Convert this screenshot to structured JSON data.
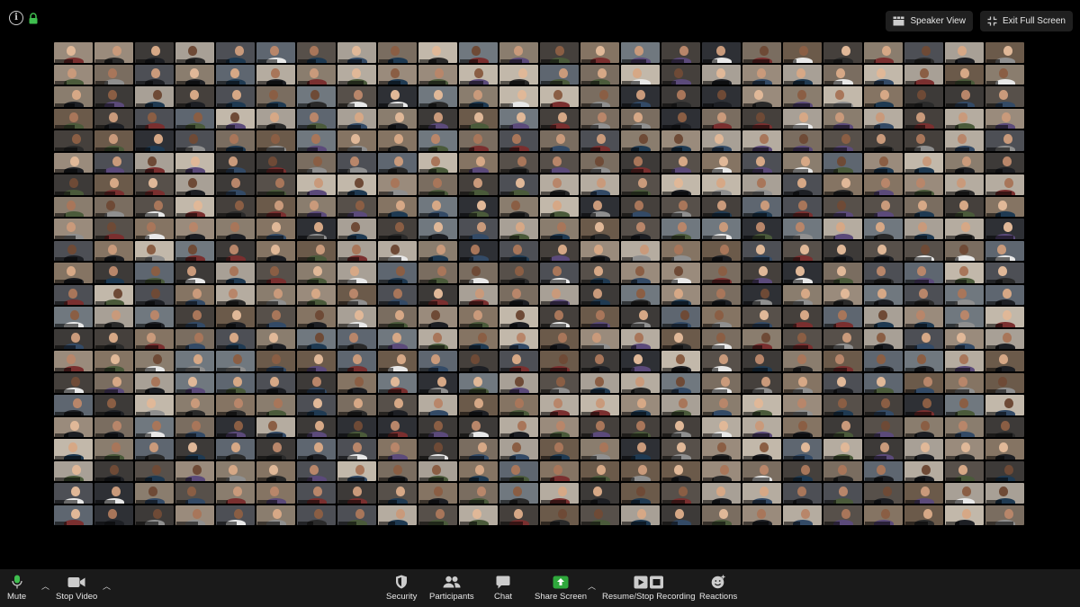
{
  "top_bar": {
    "speaker_view_label": "Speaker View",
    "exit_full_screen_label": "Exit Full Screen"
  },
  "gallery": {
    "columns": 24,
    "rows": 22
  },
  "toolbar": {
    "mute_label": "Mute",
    "stop_video_label": "Stop Video",
    "security_label": "Security",
    "participants_label": "Participants",
    "chat_label": "Chat",
    "share_screen_label": "Share Screen",
    "recording_label": "Resume/Stop Recording",
    "reactions_label": "Reactions"
  },
  "colors": {
    "background": "#000000",
    "toolbar_bg": "#1a1a1a",
    "mic_green": "#3fbf4f",
    "share_green": "#2fa83c",
    "lock_green": "#3fbf4f"
  },
  "icons": {
    "info": "info-icon",
    "encryption": "lock-icon",
    "speaker_view": "speaker-view-icon",
    "exit_full_screen": "exit-fullscreen-icon",
    "mute": "microphone-icon",
    "video": "video-camera-icon",
    "security": "shield-icon",
    "participants": "participants-icon",
    "chat": "chat-bubble-icon",
    "share": "share-screen-icon",
    "recording": "record-icon",
    "reactions": "emoji-icon"
  }
}
